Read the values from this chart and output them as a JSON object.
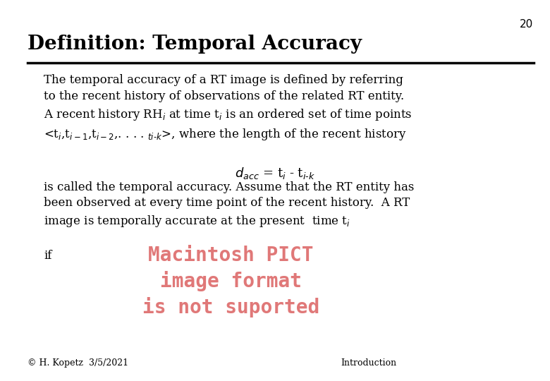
{
  "title": "Definition: Temporal Accuracy",
  "slide_number": "20",
  "background_color": "#ffffff",
  "title_color": "#000000",
  "title_fontsize": 20,
  "line_color": "#000000",
  "body_text_p1": "The temporal accuracy of a RT image is defined by referring\nto the recent history of observations of the related RT entity.\nA recent history RH$_i$ at time t$_i$ is an ordered set of time points\n<t$_i$,t$_{i-1}$,t$_{i-2}$,. . . . $_{ti\\text{-}k}$>, where the length of the recent history",
  "formula": "$d_{acc}$ = t$_i$ - t$_{i\\text{-}k}$",
  "body_text_p2": "is called the temporal accuracy. Assume that the RT entity has\nbeen observed at every time point of the recent history.  A RT\nimage is temporally accurate at the present  time t$_i$",
  "body_text_if": "if",
  "pict_text": "Macintosh PICT\nimage format\nis not suported",
  "pict_color": "#e07878",
  "footer_left": "© H. Kopetz  3/5/2021",
  "footer_right": "Introduction",
  "footer_fontsize": 9,
  "body_fontsize": 12,
  "body_indent": 0.08,
  "body_color": "#000000"
}
